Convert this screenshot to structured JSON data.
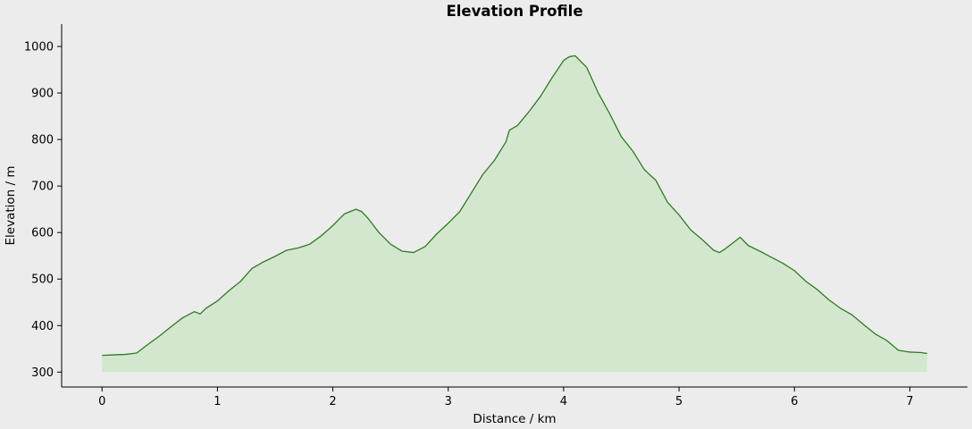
{
  "chart_data": {
    "type": "area",
    "title": "Elevation Profile",
    "xlabel": "Distance / km",
    "ylabel": "Elevation / m",
    "xlim": [
      -0.35,
      7.5
    ],
    "ylim": [
      268,
      1048
    ],
    "baseline": 300,
    "grid": false,
    "legend": "none",
    "xticks": [
      0,
      1,
      2,
      3,
      4,
      5,
      6,
      7
    ],
    "yticks": [
      300,
      400,
      500,
      600,
      700,
      800,
      900,
      1000
    ],
    "x": [
      0,
      0.1,
      0.2,
      0.3,
      0.4,
      0.5,
      0.6,
      0.7,
      0.8,
      0.85,
      0.9,
      1.0,
      1.1,
      1.2,
      1.3,
      1.4,
      1.5,
      1.6,
      1.7,
      1.8,
      1.9,
      2.0,
      2.1,
      2.2,
      2.25,
      2.3,
      2.4,
      2.5,
      2.6,
      2.7,
      2.8,
      2.9,
      3.0,
      3.1,
      3.2,
      3.3,
      3.4,
      3.5,
      3.53,
      3.6,
      3.7,
      3.8,
      3.9,
      4.0,
      4.05,
      4.1,
      4.2,
      4.3,
      4.4,
      4.5,
      4.6,
      4.7,
      4.8,
      4.9,
      5.0,
      5.1,
      5.2,
      5.3,
      5.35,
      5.4,
      5.5,
      5.53,
      5.6,
      5.7,
      5.8,
      5.9,
      6.0,
      6.1,
      6.2,
      6.3,
      6.4,
      6.5,
      6.6,
      6.7,
      6.8,
      6.9,
      7.0,
      7.1,
      7.15
    ],
    "values": [
      336,
      337,
      338,
      341,
      360,
      378,
      398,
      417,
      430,
      425,
      437,
      453,
      475,
      495,
      523,
      537,
      549,
      562,
      567,
      575,
      593,
      615,
      640,
      650,
      645,
      632,
      600,
      575,
      560,
      557,
      570,
      597,
      620,
      645,
      685,
      725,
      755,
      795,
      820,
      830,
      860,
      893,
      933,
      970,
      978,
      980,
      955,
      900,
      855,
      806,
      775,
      735,
      712,
      665,
      638,
      606,
      585,
      562,
      557,
      565,
      584,
      590,
      572,
      560,
      547,
      534,
      518,
      495,
      477,
      455,
      437,
      423,
      402,
      382,
      368,
      347,
      343,
      342,
      340
    ],
    "line_color": "#2e7d1e",
    "fill_color": "#d3e7cf"
  }
}
